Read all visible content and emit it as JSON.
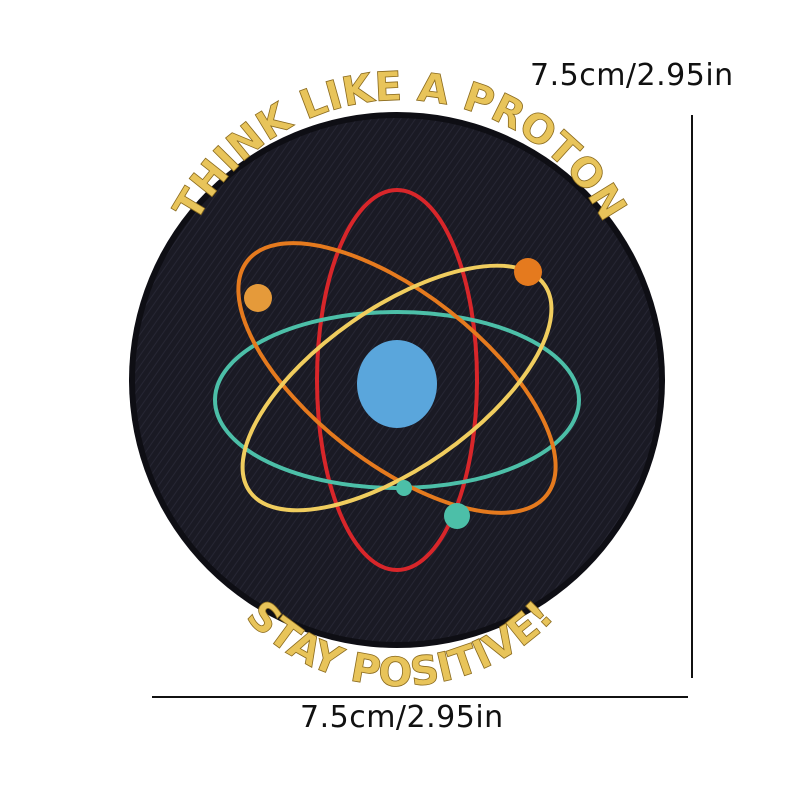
{
  "patch": {
    "top_text": "THINK LIKE A PROTON",
    "bottom_text": "STAY POSITIVE!",
    "colors": {
      "fabric": "#1a1a24",
      "thread_gold": "#e8c45a",
      "orbit_red": "#d8262a",
      "orbit_orange": "#e57a1e",
      "orbit_yellow": "#f0cd5e",
      "orbit_teal": "#4cbfa8",
      "nucleus_blue": "#5aa6dc"
    }
  },
  "dimensions": {
    "height_label": "7.5cm/2.95in",
    "width_label": "7.5cm/2.95in"
  }
}
